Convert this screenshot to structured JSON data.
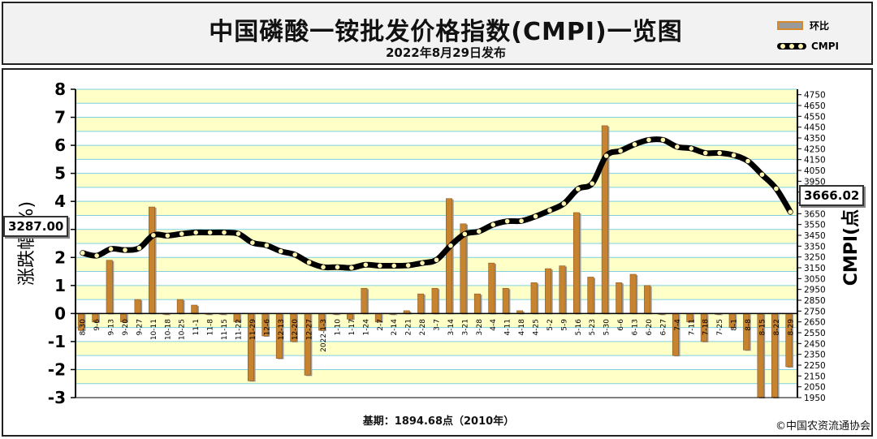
{
  "header": {
    "title": "中国磷酸一铵批发价格指数(CMPI)一览图",
    "subtitle": "2022年8月29日发布"
  },
  "legend": {
    "bar_label": "环比",
    "line_label": "CMPI"
  },
  "footer": {
    "base_note": "基期：1894.68点（2010年）",
    "copyright": "©中国农资流通协会"
  },
  "callouts": {
    "start_value": "3287.00",
    "end_value": "3666.02"
  },
  "colors": {
    "bar_fill": "#c7832e",
    "bar_edge": "#9a9a9a",
    "band_yellow": "#ffffc8",
    "grid_cyan": "#7fd0e0",
    "line": "#000000",
    "marker": "#fff5b0"
  },
  "chart_data": {
    "type": "bar",
    "categories": [
      "8-30",
      "9-6",
      "9-13",
      "9-20",
      "9-27",
      "10-11",
      "10-18",
      "10-25",
      "11-1",
      "11-8",
      "11-15",
      "11-22",
      "11-29",
      "12-6",
      "12-13",
      "12-20",
      "12-27",
      "2022-1-3",
      "1-10",
      "1-17",
      "1-24",
      "2-7",
      "2-14",
      "2-21",
      "2-28",
      "3-7",
      "3-14",
      "3-21",
      "3-28",
      "4-4",
      "4-11",
      "4-18",
      "4-25",
      "5-2",
      "5-9",
      "5-16",
      "5-23",
      "5-30",
      "6-6",
      "6-13",
      "6-20",
      "6-27",
      "7-4",
      "7-11",
      "7-18",
      "7-25",
      "8-1",
      "8-8",
      "8-15",
      "8-22",
      "8-29"
    ],
    "series": [
      {
        "name": "环比",
        "axis": "left",
        "unit": "%",
        "values": [
          -0.6,
          -0.3,
          1.9,
          -0.3,
          0.5,
          3.8,
          0.0,
          0.5,
          0.3,
          0.0,
          0.0,
          -0.3,
          -2.4,
          -0.8,
          -1.6,
          -1.0,
          -2.2,
          -0.6,
          0.0,
          -0.2,
          0.9,
          -0.3,
          0.0,
          0.1,
          0.7,
          0.9,
          4.1,
          3.2,
          0.7,
          1.8,
          0.9,
          0.1,
          1.1,
          1.6,
          1.7,
          3.6,
          1.3,
          6.7,
          1.1,
          1.4,
          1.0,
          0.0,
          -1.5,
          -0.3,
          -1.0,
          0.0,
          -0.5,
          -1.3,
          -3.0,
          -3.0,
          -1.9
        ]
      },
      {
        "name": "CMPI",
        "axis": "right",
        "unit": "点",
        "values": [
          3287,
          3262,
          3324,
          3314,
          3332,
          3451,
          3447,
          3464,
          3476,
          3476,
          3476,
          3465,
          3382,
          3357,
          3303,
          3271,
          3200,
          3156,
          3156,
          3150,
          3178,
          3169,
          3169,
          3172,
          3194,
          3223,
          3355,
          3462,
          3486,
          3548,
          3580,
          3583,
          3625,
          3680,
          3743,
          3878,
          3929,
          4185,
          4231,
          4291,
          4332,
          4332,
          4268,
          4253,
          4211,
          4211,
          4190,
          4136,
          4011,
          3881,
          3666
        ]
      }
    ],
    "y_left": {
      "label": "涨跌幅(%)",
      "lim": [
        -3,
        8
      ],
      "ticks": [
        -3,
        -2,
        -1,
        0,
        1,
        2,
        3,
        4,
        5,
        6,
        7,
        8
      ]
    },
    "y_right": {
      "label": "CMPI(点)",
      "lim": [
        1950,
        4800
      ],
      "ticks": [
        1950,
        2050,
        2150,
        2250,
        2350,
        2450,
        2550,
        2650,
        2750,
        2850,
        2950,
        3050,
        3150,
        3250,
        3350,
        3450,
        3550,
        3650,
        3750,
        3850,
        3950,
        4050,
        4150,
        4250,
        4350,
        4450,
        4550,
        4650,
        4750
      ]
    },
    "grid": true
  }
}
